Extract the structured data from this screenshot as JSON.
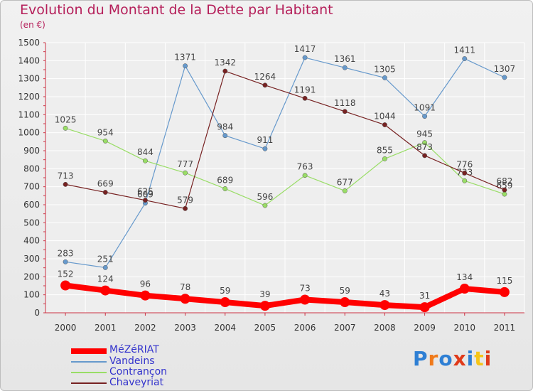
{
  "title": "Evolution du Montant de la Dette par Habitant",
  "subtitle": "(en €)",
  "logo": {
    "text": "Proxiti",
    "colors": [
      "#2e7fd4",
      "#f07a1a",
      "#2e7fd4",
      "#e03a1a",
      "#2e7fd4",
      "#f5c518",
      "#e03a1a"
    ]
  },
  "chart_data": {
    "type": "line",
    "x": [
      "2000",
      "2001",
      "2002",
      "2003",
      "2004",
      "2005",
      "2006",
      "2007",
      "2008",
      "2009",
      "2010",
      "2011"
    ],
    "ylim": [
      0,
      1500
    ],
    "yticks": [
      0,
      100,
      200,
      300,
      400,
      500,
      600,
      700,
      800,
      900,
      1000,
      1100,
      1200,
      1300,
      1400,
      1500
    ],
    "grid": true,
    "legend_position": "bottom-left",
    "series": [
      {
        "name": "MéZéRIAT",
        "color": "#ff0000",
        "width": 8,
        "values": [
          152,
          124,
          96,
          78,
          59,
          39,
          73,
          59,
          43,
          31,
          134,
          115
        ]
      },
      {
        "name": "Vandeins",
        "color": "#6699cc",
        "width": 1.2,
        "values": [
          283,
          251,
          609,
          1371,
          984,
          911,
          1417,
          1361,
          1305,
          1091,
          1411,
          1307
        ]
      },
      {
        "name": "Contrançon",
        "color": "#99dd66",
        "width": 1.2,
        "values": [
          1025,
          954,
          844,
          777,
          689,
          596,
          763,
          677,
          855,
          945,
          733,
          659
        ]
      },
      {
        "name": "Chaveyriat",
        "color": "#772222",
        "width": 1.2,
        "values": [
          713,
          669,
          625,
          579,
          1342,
          1264,
          1191,
          1118,
          1044,
          873,
          776,
          682
        ]
      }
    ]
  }
}
